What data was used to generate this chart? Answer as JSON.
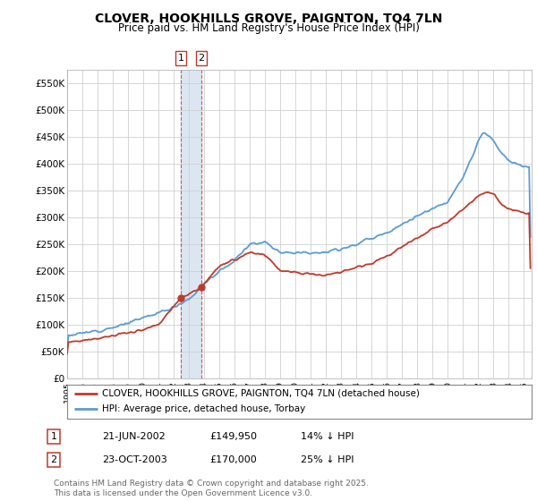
{
  "title": "CLOVER, HOOKHILLS GROVE, PAIGNTON, TQ4 7LN",
  "subtitle": "Price paid vs. HM Land Registry's House Price Index (HPI)",
  "ylim": [
    0,
    575000
  ],
  "yticks": [
    0,
    50000,
    100000,
    150000,
    200000,
    250000,
    300000,
    350000,
    400000,
    450000,
    500000,
    550000
  ],
  "ytick_labels": [
    "£0",
    "£50K",
    "£100K",
    "£150K",
    "£200K",
    "£250K",
    "£300K",
    "£350K",
    "£400K",
    "£450K",
    "£500K",
    "£550K"
  ],
  "hpi_color": "#5b9bd5",
  "price_color": "#c0392b",
  "shading_color": "#dce6f1",
  "transaction1_x": 2002.47,
  "transaction1_price": 149950,
  "transaction2_x": 2003.81,
  "transaction2_price": 170000,
  "legend_entry1": "CLOVER, HOOKHILLS GROVE, PAIGNTON, TQ4 7LN (detached house)",
  "legend_entry2": "HPI: Average price, detached house, Torbay",
  "footer": "Contains HM Land Registry data © Crown copyright and database right 2025.\nThis data is licensed under the Open Government Licence v3.0.",
  "table_rows": [
    [
      "1",
      "21-JUN-2002",
      "£149,950",
      "14% ↓ HPI"
    ],
    [
      "2",
      "23-OCT-2003",
      "£170,000",
      "25% ↓ HPI"
    ]
  ],
  "background_color": "#ffffff",
  "grid_color": "#d0d0d0",
  "xlim_start": 1995.0,
  "xlim_end": 2025.5
}
